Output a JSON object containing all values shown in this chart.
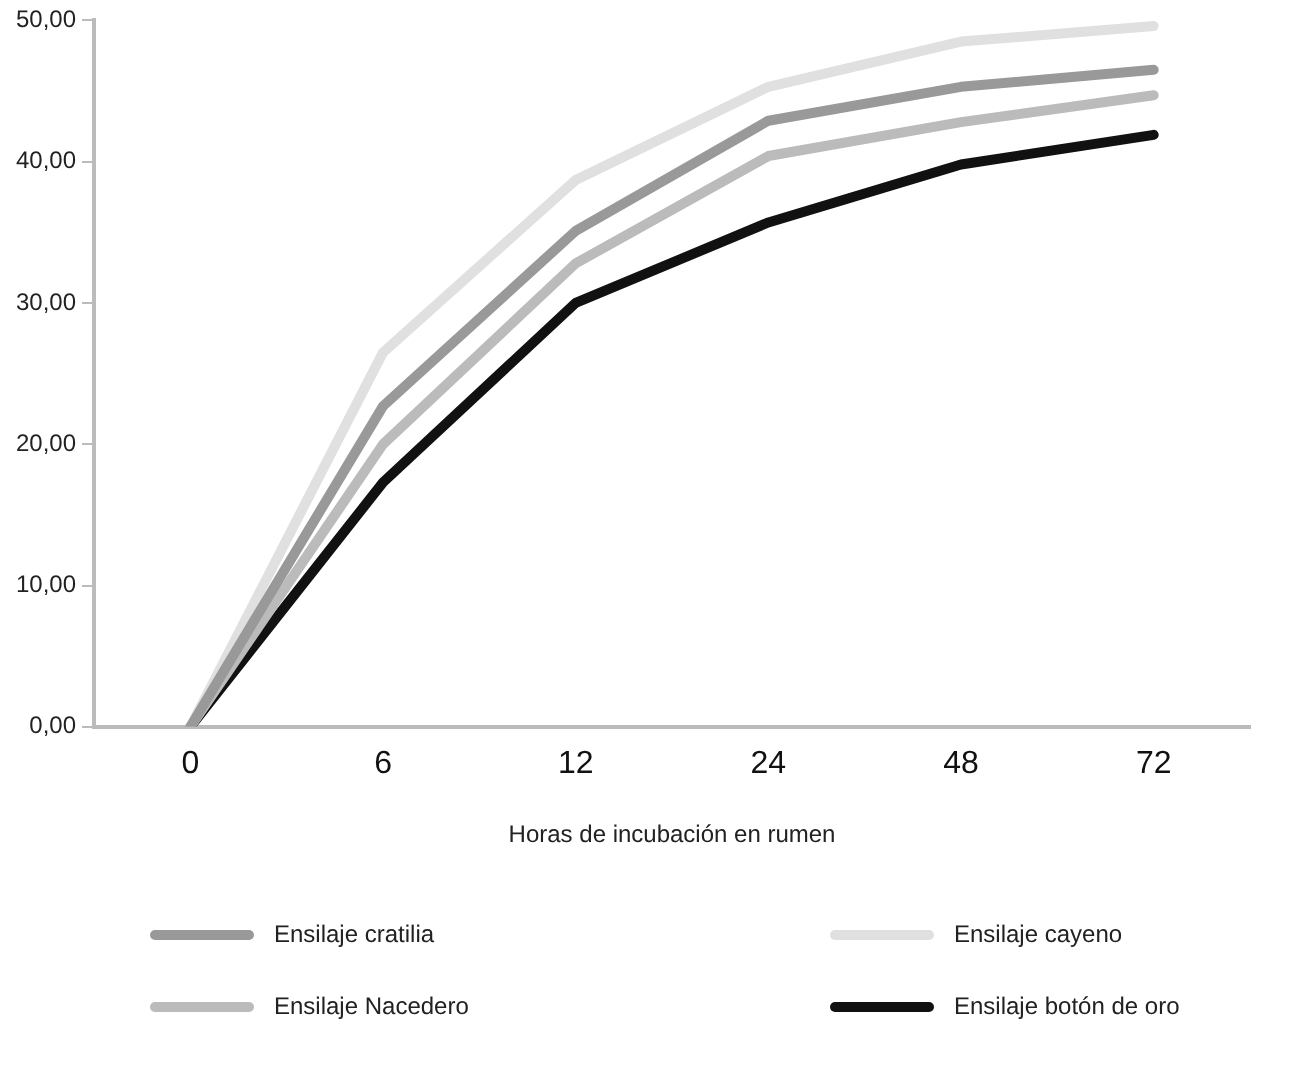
{
  "chart_data": {
    "type": "line",
    "xlabel": "Horas de incubación en rumen",
    "categories": [
      "0",
      "6",
      "12",
      "24",
      "48",
      "72"
    ],
    "ylim": [
      0,
      50
    ],
    "yticks": [
      {
        "value": 0,
        "label": "0,00"
      },
      {
        "value": 10,
        "label": "10,00"
      },
      {
        "value": 20,
        "label": "20,00"
      },
      {
        "value": 30,
        "label": "30,00"
      },
      {
        "value": 40,
        "label": "40,00"
      },
      {
        "value": 50,
        "label": "50,00"
      }
    ],
    "grid": false,
    "legend": "bottom",
    "marker": "none",
    "line_style": "solid",
    "series": [
      {
        "name": "Ensilaje cratilia",
        "color": "#999999",
        "values": [
          0,
          22.7,
          35.1,
          42.9,
          45.3,
          46.5
        ]
      },
      {
        "name": "Ensilaje cayeno",
        "color": "#e0e0e0",
        "values": [
          0,
          26.5,
          38.7,
          45.3,
          48.5,
          49.6
        ]
      },
      {
        "name": "Ensilaje Nacedero",
        "color": "#bbbbbb",
        "values": [
          0,
          20.0,
          32.8,
          40.4,
          42.8,
          44.7
        ]
      },
      {
        "name": "Ensilaje botón de oro",
        "color": "#111111",
        "values": [
          0,
          17.3,
          30.0,
          35.7,
          39.8,
          41.9
        ]
      }
    ]
  }
}
